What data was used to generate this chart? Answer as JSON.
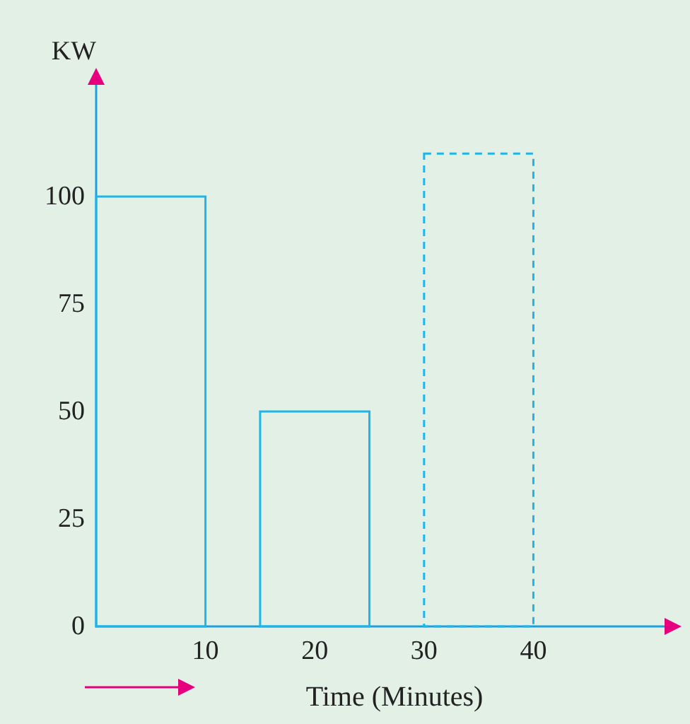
{
  "chart_data": {
    "type": "histogram",
    "xlabel": "Time (Minutes)",
    "ylabel": "KW",
    "xlim": [
      0,
      52
    ],
    "xticks": [
      10,
      20,
      30,
      40
    ],
    "ylim": [
      0,
      126
    ],
    "yticks": [
      0,
      25,
      50,
      75,
      100
    ],
    "grid": false,
    "bins": [
      0,
      10,
      15,
      25,
      30,
      40
    ],
    "series": [
      {
        "color": "#1fb5ea",
        "values": [
          100,
          null,
          null,
          null,
          null
        ],
        "line_style": "solid"
      },
      {
        "color": "#1fb5ea",
        "values": [
          null,
          null,
          50,
          null,
          null
        ],
        "line_style": "solid"
      },
      {
        "color": "#1fb5ea",
        "values": [
          null,
          null,
          null,
          null,
          110
        ],
        "line_style": "dashed"
      }
    ]
  }
}
